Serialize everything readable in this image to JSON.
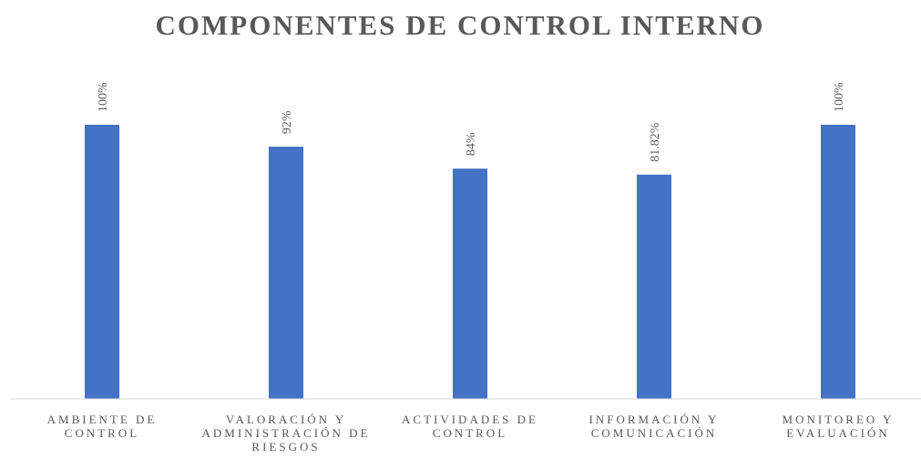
{
  "chart_data": {
    "type": "bar",
    "title": "COMPONENTES DE CONTROL INTERNO",
    "categories": [
      "AMBIENTE DE CONTROL",
      "VALORACIÓN Y ADMINISTRACIÓN DE RIESGOS",
      "ACTIVIDADES DE CONTROL",
      "INFORMACIÓN Y COMUNICACIÓN",
      "MONITOREO Y EVALUACIÓN"
    ],
    "values": [
      100,
      92,
      84,
      81.82,
      100
    ],
    "value_labels": [
      "100%",
      "92%",
      "84%",
      "81.82%",
      "100%"
    ],
    "color": "#4472c4",
    "ylim": [
      0,
      100
    ]
  }
}
